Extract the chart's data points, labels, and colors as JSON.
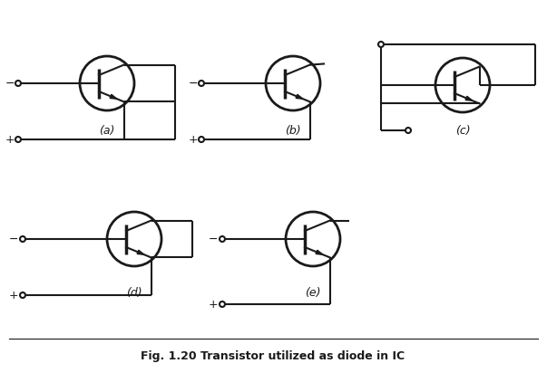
{
  "title": "Fig. 1.20 Transistor utilized as diode in IC",
  "background_color": "#ffffff",
  "line_color": "#1a1a1a",
  "line_width": 1.5,
  "circle_lw": 2.0,
  "fig_width": 6.03,
  "fig_height": 4.12,
  "labels": [
    "(a)",
    "(b)",
    "(c)",
    "(d)",
    "(e)"
  ]
}
